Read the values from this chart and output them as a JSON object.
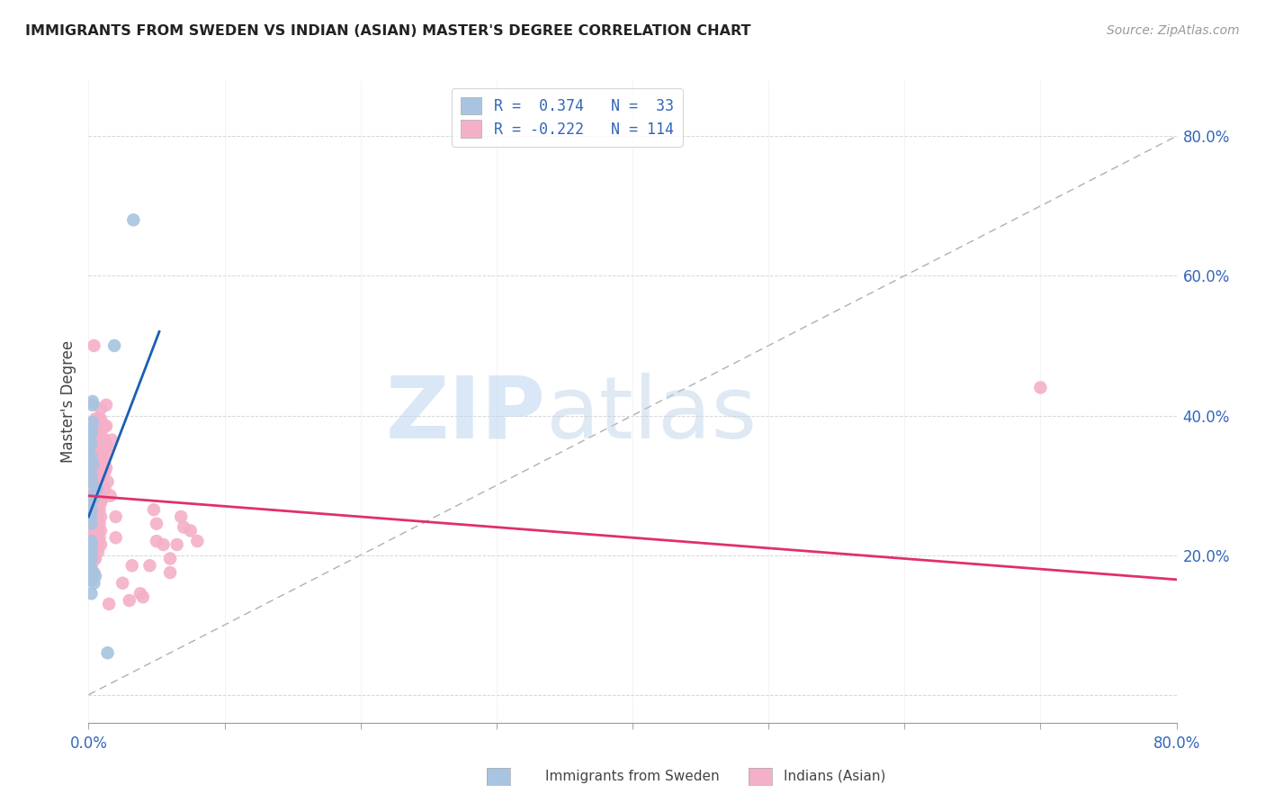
{
  "title": "IMMIGRANTS FROM SWEDEN VS INDIAN (ASIAN) MASTER'S DEGREE CORRELATION CHART",
  "source": "Source: ZipAtlas.com",
  "ylabel": "Master's Degree",
  "blue_color": "#a8c4e0",
  "pink_color": "#f4b0c8",
  "blue_line_color": "#1a5fb4",
  "pink_line_color": "#e0306a",
  "diag_line_color": "#b0b0b0",
  "watermark_zip": "ZIP",
  "watermark_atlas": "atlas",
  "xmin": 0.0,
  "xmax": 0.8,
  "ymin": -0.04,
  "ymax": 0.88,
  "blue_line_x": [
    0.0,
    0.052
  ],
  "blue_line_y": [
    0.255,
    0.52
  ],
  "pink_line_x": [
    0.0,
    0.8
  ],
  "pink_line_y": [
    0.285,
    0.165
  ],
  "diag_line_x": [
    0.0,
    0.8
  ],
  "diag_line_y": [
    0.0,
    0.8
  ],
  "sweden_points": [
    [
      0.001,
      0.355
    ],
    [
      0.001,
      0.21
    ],
    [
      0.001,
      0.19
    ],
    [
      0.002,
      0.38
    ],
    [
      0.002,
      0.375
    ],
    [
      0.002,
      0.36
    ],
    [
      0.002,
      0.34
    ],
    [
      0.002,
      0.315
    ],
    [
      0.002,
      0.305
    ],
    [
      0.002,
      0.285
    ],
    [
      0.002,
      0.265
    ],
    [
      0.002,
      0.255
    ],
    [
      0.002,
      0.245
    ],
    [
      0.002,
      0.22
    ],
    [
      0.002,
      0.215
    ],
    [
      0.002,
      0.205
    ],
    [
      0.002,
      0.195
    ],
    [
      0.002,
      0.18
    ],
    [
      0.002,
      0.165
    ],
    [
      0.002,
      0.145
    ],
    [
      0.003,
      0.42
    ],
    [
      0.003,
      0.415
    ],
    [
      0.003,
      0.39
    ],
    [
      0.003,
      0.33
    ],
    [
      0.003,
      0.28
    ],
    [
      0.003,
      0.175
    ],
    [
      0.003,
      0.165
    ],
    [
      0.004,
      0.16
    ],
    [
      0.005,
      0.17
    ],
    [
      0.006,
      0.295
    ],
    [
      0.014,
      0.06
    ],
    [
      0.019,
      0.5
    ],
    [
      0.033,
      0.68
    ]
  ],
  "indian_points": [
    [
      0.003,
      0.39
    ],
    [
      0.003,
      0.37
    ],
    [
      0.003,
      0.355
    ],
    [
      0.003,
      0.33
    ],
    [
      0.003,
      0.315
    ],
    [
      0.003,
      0.295
    ],
    [
      0.003,
      0.27
    ],
    [
      0.003,
      0.255
    ],
    [
      0.003,
      0.24
    ],
    [
      0.003,
      0.22
    ],
    [
      0.003,
      0.205
    ],
    [
      0.003,
      0.19
    ],
    [
      0.004,
      0.5
    ],
    [
      0.004,
      0.38
    ],
    [
      0.004,
      0.355
    ],
    [
      0.004,
      0.345
    ],
    [
      0.004,
      0.33
    ],
    [
      0.004,
      0.315
    ],
    [
      0.004,
      0.305
    ],
    [
      0.004,
      0.28
    ],
    [
      0.004,
      0.265
    ],
    [
      0.004,
      0.245
    ],
    [
      0.004,
      0.23
    ],
    [
      0.004,
      0.215
    ],
    [
      0.004,
      0.195
    ],
    [
      0.004,
      0.175
    ],
    [
      0.005,
      0.395
    ],
    [
      0.005,
      0.37
    ],
    [
      0.005,
      0.355
    ],
    [
      0.005,
      0.34
    ],
    [
      0.005,
      0.32
    ],
    [
      0.005,
      0.305
    ],
    [
      0.005,
      0.285
    ],
    [
      0.005,
      0.27
    ],
    [
      0.005,
      0.255
    ],
    [
      0.005,
      0.24
    ],
    [
      0.005,
      0.225
    ],
    [
      0.005,
      0.21
    ],
    [
      0.005,
      0.195
    ],
    [
      0.006,
      0.38
    ],
    [
      0.006,
      0.365
    ],
    [
      0.006,
      0.35
    ],
    [
      0.006,
      0.335
    ],
    [
      0.006,
      0.32
    ],
    [
      0.006,
      0.305
    ],
    [
      0.006,
      0.29
    ],
    [
      0.006,
      0.275
    ],
    [
      0.006,
      0.26
    ],
    [
      0.006,
      0.245
    ],
    [
      0.006,
      0.23
    ],
    [
      0.006,
      0.215
    ],
    [
      0.007,
      0.395
    ],
    [
      0.007,
      0.375
    ],
    [
      0.007,
      0.36
    ],
    [
      0.007,
      0.345
    ],
    [
      0.007,
      0.33
    ],
    [
      0.007,
      0.31
    ],
    [
      0.007,
      0.295
    ],
    [
      0.007,
      0.275
    ],
    [
      0.007,
      0.26
    ],
    [
      0.007,
      0.24
    ],
    [
      0.007,
      0.22
    ],
    [
      0.007,
      0.205
    ],
    [
      0.008,
      0.37
    ],
    [
      0.008,
      0.355
    ],
    [
      0.008,
      0.34
    ],
    [
      0.008,
      0.32
    ],
    [
      0.008,
      0.3
    ],
    [
      0.008,
      0.285
    ],
    [
      0.008,
      0.265
    ],
    [
      0.008,
      0.245
    ],
    [
      0.008,
      0.225
    ],
    [
      0.009,
      0.41
    ],
    [
      0.009,
      0.395
    ],
    [
      0.009,
      0.375
    ],
    [
      0.009,
      0.355
    ],
    [
      0.009,
      0.335
    ],
    [
      0.009,
      0.315
    ],
    [
      0.009,
      0.295
    ],
    [
      0.009,
      0.275
    ],
    [
      0.009,
      0.255
    ],
    [
      0.009,
      0.235
    ],
    [
      0.009,
      0.215
    ],
    [
      0.01,
      0.38
    ],
    [
      0.01,
      0.36
    ],
    [
      0.01,
      0.34
    ],
    [
      0.01,
      0.32
    ],
    [
      0.01,
      0.3
    ],
    [
      0.01,
      0.28
    ],
    [
      0.011,
      0.355
    ],
    [
      0.011,
      0.335
    ],
    [
      0.011,
      0.315
    ],
    [
      0.011,
      0.295
    ],
    [
      0.012,
      0.385
    ],
    [
      0.012,
      0.365
    ],
    [
      0.012,
      0.345
    ],
    [
      0.012,
      0.32
    ],
    [
      0.012,
      0.295
    ],
    [
      0.013,
      0.415
    ],
    [
      0.013,
      0.385
    ],
    [
      0.013,
      0.355
    ],
    [
      0.013,
      0.325
    ],
    [
      0.014,
      0.355
    ],
    [
      0.014,
      0.305
    ],
    [
      0.015,
      0.13
    ],
    [
      0.016,
      0.285
    ],
    [
      0.017,
      0.365
    ],
    [
      0.02,
      0.255
    ],
    [
      0.02,
      0.225
    ],
    [
      0.025,
      0.16
    ],
    [
      0.03,
      0.135
    ],
    [
      0.032,
      0.185
    ],
    [
      0.038,
      0.145
    ],
    [
      0.04,
      0.14
    ],
    [
      0.045,
      0.185
    ],
    [
      0.048,
      0.265
    ],
    [
      0.05,
      0.245
    ],
    [
      0.05,
      0.22
    ],
    [
      0.055,
      0.215
    ],
    [
      0.06,
      0.195
    ],
    [
      0.06,
      0.175
    ],
    [
      0.065,
      0.215
    ],
    [
      0.068,
      0.255
    ],
    [
      0.07,
      0.24
    ],
    [
      0.075,
      0.235
    ],
    [
      0.08,
      0.22
    ],
    [
      0.7,
      0.44
    ]
  ]
}
